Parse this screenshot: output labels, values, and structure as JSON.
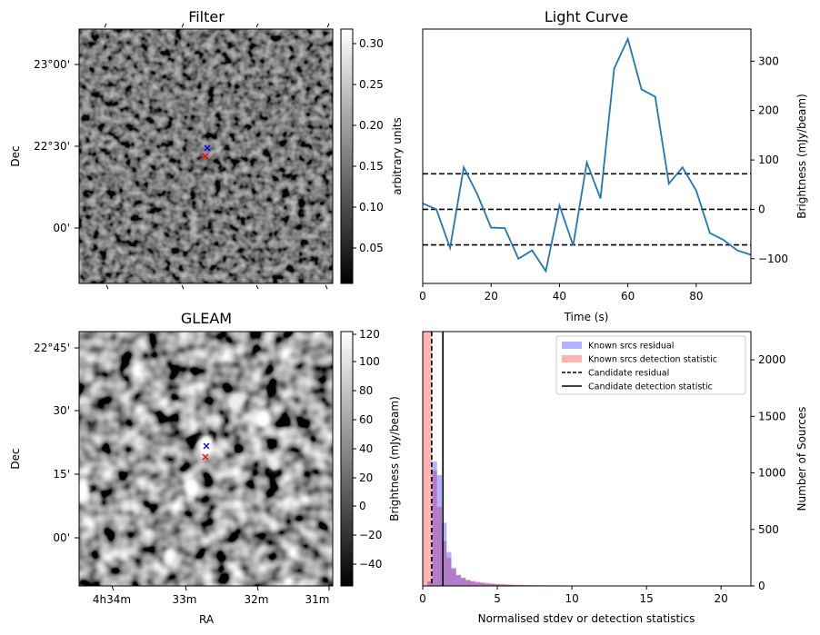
{
  "filter_panel": {
    "title": "Filter",
    "ylabel": "Dec",
    "y_ticks": [
      "23°00'",
      "22°30'",
      "00'"
    ],
    "colorbar": {
      "label": "arbitrary units",
      "ticks": [
        "0.30",
        "0.25",
        "0.20",
        "0.15",
        "0.10",
        "0.05"
      ]
    },
    "markers": [
      {
        "symbol": "x",
        "color": "#0000ff"
      },
      {
        "symbol": "x",
        "color": "#ff0000"
      }
    ]
  },
  "gleam_panel": {
    "title": "GLEAM",
    "xlabel": "RA",
    "ylabel": "Dec",
    "x_ticks": [
      "4h34m",
      "33m",
      "32m",
      "31m"
    ],
    "y_ticks": [
      "22°45'",
      "30'",
      "15'",
      "00'"
    ],
    "colorbar": {
      "label": "Brightness (mJy/beam)",
      "ticks": [
        "120",
        "100",
        "80",
        "60",
        "40",
        "20",
        "0",
        "−20",
        "−40"
      ]
    },
    "markers": [
      {
        "symbol": "x",
        "color": "#0000ff"
      },
      {
        "symbol": "x",
        "color": "#ff0000"
      }
    ]
  },
  "chart_data": [
    {
      "type": "line",
      "title": "Light Curve",
      "xlabel": "Time (s)",
      "ylabel": "Brightness (mJy/beam)",
      "xlim": [
        0,
        96
      ],
      "ylim": [
        -150,
        365
      ],
      "x_ticks": [
        0,
        20,
        40,
        60,
        80
      ],
      "y_ticks": [
        -100,
        0,
        100,
        200,
        300
      ],
      "series": [
        {
          "color": "#1f77b4",
          "x": [
            0,
            4,
            8,
            12,
            16,
            20,
            24,
            28,
            32,
            36,
            40,
            44,
            48,
            52,
            56,
            60,
            64,
            68,
            72,
            76,
            80,
            84,
            88,
            92,
            96
          ],
          "y": [
            12,
            0,
            -78,
            85,
            30,
            -37,
            -38,
            -100,
            -83,
            -125,
            8,
            -73,
            95,
            22,
            285,
            345,
            243,
            228,
            52,
            85,
            38,
            -48,
            -62,
            -83,
            -92
          ]
        }
      ],
      "hlines": [
        {
          "y": 72,
          "style": "dashed",
          "color": "#000000"
        },
        {
          "y": 0,
          "style": "dashed",
          "color": "#000000"
        },
        {
          "y": -72,
          "style": "dashed",
          "color": "#000000"
        }
      ]
    },
    {
      "type": "histogram",
      "xlabel": "Normalised stdev or detection statistics",
      "ylabel": "Number of Sources",
      "xlim": [
        0,
        22
      ],
      "ylim": [
        0,
        2250
      ],
      "x_ticks": [
        0,
        5,
        10,
        15,
        20
      ],
      "y_ticks": [
        0,
        500,
        1000,
        1500,
        2000
      ],
      "legend": {
        "position": "upper right",
        "entries": [
          "Known srcs residual",
          "Known srcs detection statistic",
          "Candidate residual",
          "Candidate detection statistic"
        ]
      },
      "series": [
        {
          "name": "Known srcs residual",
          "color": "#0000ff",
          "opacity": 0.3,
          "bin_width": 0.32,
          "x_start": 0,
          "values": [
            0,
            40,
            1100,
            980,
            560,
            300,
            160,
            95,
            70,
            50,
            38,
            30,
            25,
            20,
            16,
            14,
            12,
            10,
            8,
            7,
            6,
            5,
            5,
            4,
            4,
            3,
            3,
            3,
            2,
            2
          ]
        },
        {
          "name": "Known srcs detection statistic",
          "color": "#ff0000",
          "opacity": 0.3,
          "bin_width": 0.32,
          "x_start": 0,
          "values": [
            2250,
            2250,
            1020,
            700,
            400,
            250,
            150,
            100,
            75,
            55,
            45,
            38,
            32,
            28,
            24,
            20,
            18,
            16,
            14,
            12,
            11,
            10,
            9,
            8,
            7,
            7,
            6,
            6,
            5,
            5,
            4,
            4,
            4,
            3,
            3,
            3,
            3,
            2,
            2,
            2,
            2,
            2,
            2,
            2,
            2,
            2,
            1,
            1,
            1,
            1
          ]
        }
      ],
      "vlines": [
        {
          "name": "Candidate residual",
          "x": 0.6,
          "style": "dashed",
          "color": "#000000"
        },
        {
          "name": "Candidate detection statistic",
          "x": 1.35,
          "style": "solid",
          "color": "#000000"
        }
      ]
    }
  ]
}
